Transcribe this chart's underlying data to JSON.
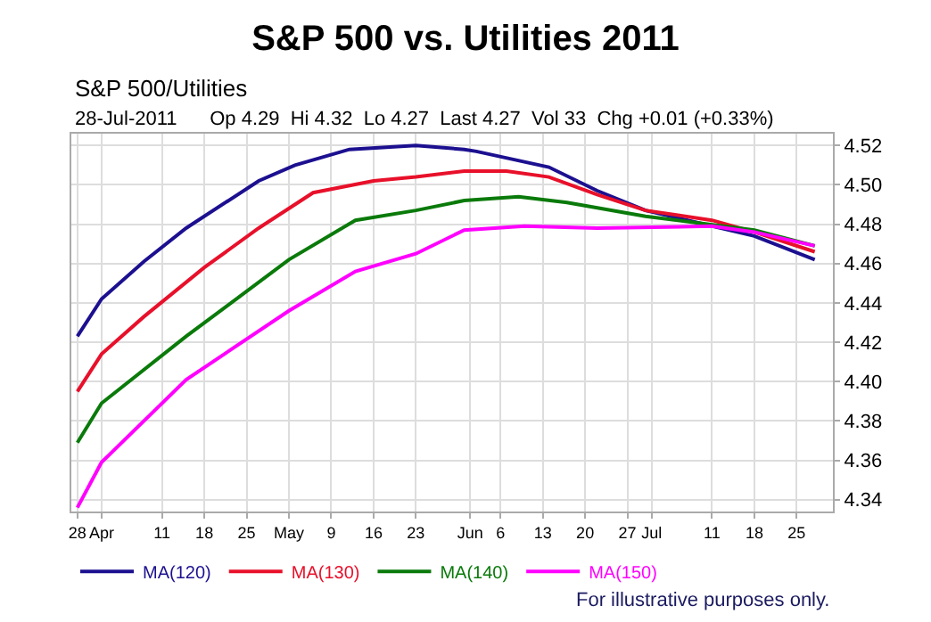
{
  "chart_data": {
    "type": "line",
    "title": "S&P 500 vs. Utilities 2011",
    "subtitle": "S&P 500/Utilities",
    "annotations": [
      "28-Jul-2011      Op 4.29  Hi 4.32  Lo 4.27  Last 4.27  Vol 33  Chg +0.01 (+0.33%)",
      "For illustrative purposes only."
    ],
    "series": [
      {
        "name": "MA(120)",
        "color": "#1c1090",
        "x": [
          "2011-03-28",
          "2011-04-01",
          "2011-04-08",
          "2011-04-15",
          "2011-04-27",
          "2011-05-03",
          "2011-05-12",
          "2011-05-23",
          "2011-05-31",
          "2011-06-02",
          "2011-06-14",
          "2011-06-22",
          "2011-06-30",
          "2011-07-18",
          "2011-07-28"
        ],
        "values": [
          4.423,
          4.442,
          4.461,
          4.478,
          4.502,
          4.51,
          4.518,
          4.52,
          4.518,
          4.517,
          4.509,
          4.497,
          4.487,
          4.474,
          4.462
        ]
      },
      {
        "name": "MA(130)",
        "color": "#e8102a",
        "x": [
          "2011-03-28",
          "2011-04-01",
          "2011-04-08",
          "2011-04-18",
          "2011-04-27",
          "2011-05-06",
          "2011-05-16",
          "2011-05-23",
          "2011-05-31",
          "2011-06-07",
          "2011-06-14",
          "2011-06-22",
          "2011-06-30",
          "2011-07-11",
          "2011-07-18",
          "2011-07-28"
        ],
        "values": [
          4.395,
          4.414,
          4.433,
          4.458,
          4.478,
          4.496,
          4.502,
          4.504,
          4.507,
          4.507,
          4.504,
          4.495,
          4.487,
          4.482,
          4.476,
          4.466
        ]
      },
      {
        "name": "MA(140)",
        "color": "#0a7a0a",
        "x": [
          "2011-03-28",
          "2011-04-01",
          "2011-04-15",
          "2011-05-02",
          "2011-05-13",
          "2011-05-23",
          "2011-05-31",
          "2011-06-09",
          "2011-06-17",
          "2011-06-30",
          "2011-07-18",
          "2011-07-28"
        ],
        "values": [
          4.369,
          4.389,
          4.423,
          4.462,
          4.482,
          4.487,
          4.492,
          4.494,
          4.491,
          4.484,
          4.477,
          4.469
        ]
      },
      {
        "name": "MA(150)",
        "color": "#ff00ff",
        "x": [
          "2011-03-28",
          "2011-04-01",
          "2011-04-15",
          "2011-05-02",
          "2011-05-13",
          "2011-05-23",
          "2011-05-31",
          "2011-06-10",
          "2011-06-22",
          "2011-07-11",
          "2011-07-18",
          "2011-07-28"
        ],
        "values": [
          4.336,
          4.359,
          4.401,
          4.436,
          4.456,
          4.465,
          4.477,
          4.479,
          4.478,
          4.479,
          4.476,
          4.469
        ]
      }
    ],
    "xlim": [
      "2011-03-27",
      "2011-07-31"
    ],
    "xticks": [
      {
        "value": "2011-03-28",
        "label": "28"
      },
      {
        "value": "2011-04-01",
        "label": "Apr"
      },
      {
        "value": "2011-04-11",
        "label": "11"
      },
      {
        "value": "2011-04-18",
        "label": "18"
      },
      {
        "value": "2011-04-25",
        "label": "25"
      },
      {
        "value": "2011-05-02",
        "label": "May"
      },
      {
        "value": "2011-05-09",
        "label": "9"
      },
      {
        "value": "2011-05-16",
        "label": "16"
      },
      {
        "value": "2011-05-23",
        "label": "23"
      },
      {
        "value": "2011-06-01",
        "label": "Jun"
      },
      {
        "value": "2011-06-06",
        "label": "6"
      },
      {
        "value": "2011-06-13",
        "label": "13"
      },
      {
        "value": "2011-06-20",
        "label": "20"
      },
      {
        "value": "2011-06-27",
        "label": "27"
      },
      {
        "value": "2011-07-01",
        "label": "Jul"
      },
      {
        "value": "2011-07-11",
        "label": "11"
      },
      {
        "value": "2011-07-18",
        "label": "18"
      },
      {
        "value": "2011-07-25",
        "label": "25"
      }
    ],
    "ylim": [
      4.334,
      4.526
    ],
    "yticks": [
      4.34,
      4.36,
      4.38,
      {
        "value": 4.4,
        "label": "4.40"
      },
      4.42,
      4.44,
      4.46,
      4.48,
      {
        "value": 4.5,
        "label": "4.50"
      },
      4.52
    ],
    "grid": true,
    "legend": "bottom",
    "marker": "none",
    "line_style": "solid"
  }
}
